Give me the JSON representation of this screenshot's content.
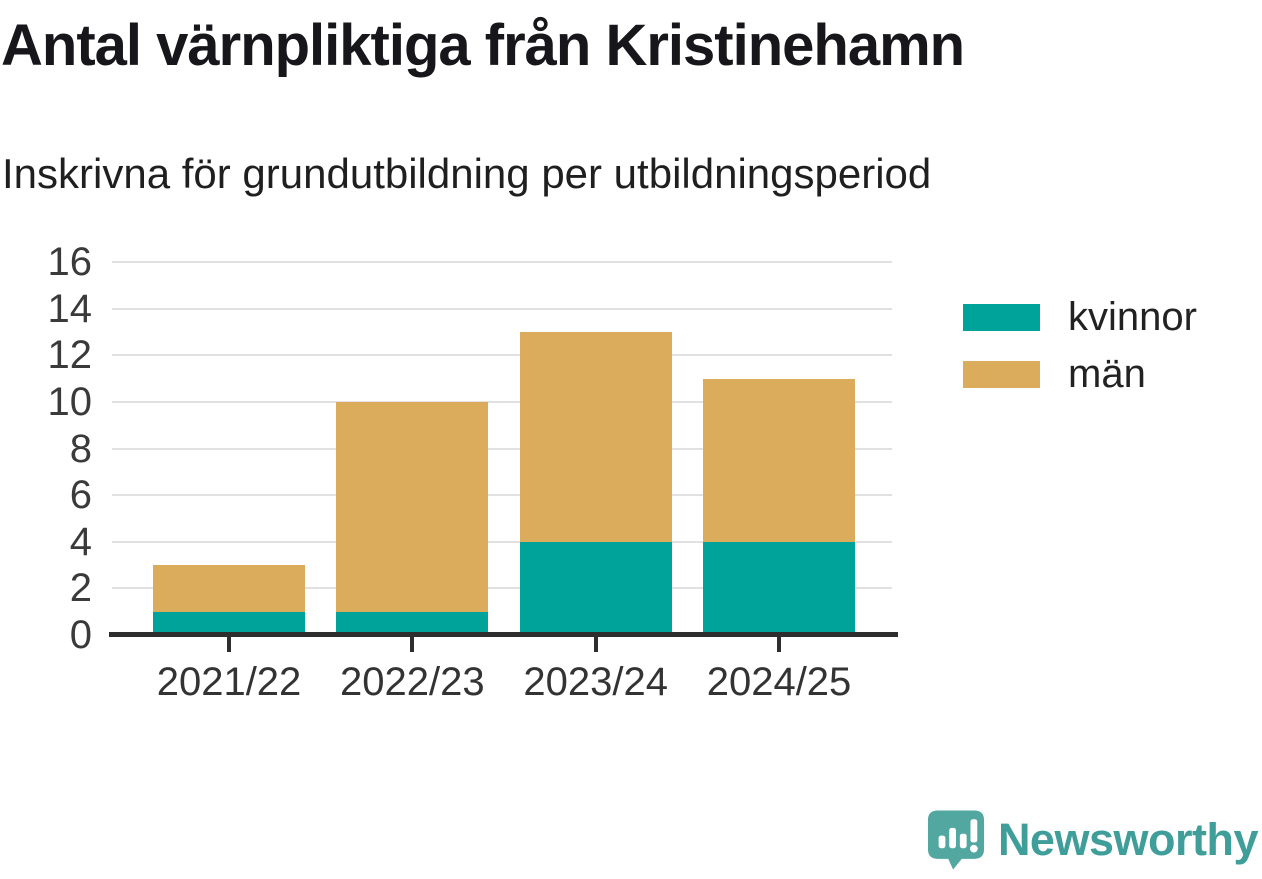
{
  "chart_data": {
    "type": "bar",
    "stacked": true,
    "title": "Antal värnpliktiga från Kristinehamn",
    "subtitle": "Inskrivna för grundutbildning per utbildningsperiod",
    "categories": [
      "2021/22",
      "2022/23",
      "2023/24",
      "2024/25"
    ],
    "series": [
      {
        "name": "kvinnor",
        "color": "#00A39A",
        "values": [
          1,
          1,
          4,
          4
        ]
      },
      {
        "name": "män",
        "color": "#DBAC5C",
        "values": [
          2,
          9,
          9,
          7
        ]
      }
    ],
    "totals": [
      3,
      10,
      13,
      11
    ],
    "xlabel": "",
    "ylabel": "",
    "ylim": [
      0,
      16
    ],
    "yticks": [
      0,
      2,
      4,
      6,
      8,
      10,
      12,
      14,
      16
    ],
    "grid": true,
    "legend_position": "right-of-plot"
  },
  "colors": {
    "kvinnor": "#00A39A",
    "man": "#DBAC5C",
    "gridline": "#E1E1E1",
    "axis": "#2E2E2E",
    "tick_label": "#3A3A3A",
    "title_text": "#17171B"
  },
  "branding": {
    "logo_text": "Newsworthy",
    "icon_color": "#52A7A1",
    "text_color": "#3F9E99"
  }
}
